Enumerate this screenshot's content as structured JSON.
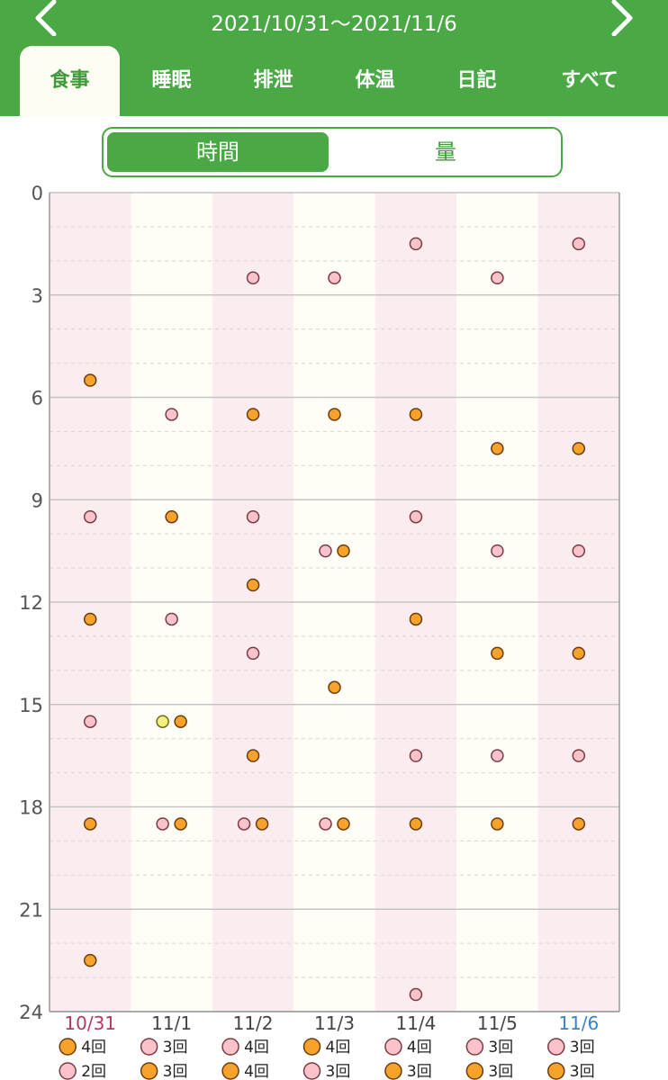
{
  "header": {
    "date_range": "2021/10/31～2021/11/6",
    "tabs": [
      {
        "label": "食事",
        "active": true
      },
      {
        "label": "睡眠",
        "active": false
      },
      {
        "label": "排泄",
        "active": false
      },
      {
        "label": "体温",
        "active": false
      },
      {
        "label": "日記",
        "active": false
      },
      {
        "label": "すべて",
        "active": false
      }
    ]
  },
  "segment": {
    "time_label": "時間",
    "amount_label": "量",
    "selected": "時間"
  },
  "colors": {
    "brand_green": "#4aa845",
    "pink": "#f9c3c9",
    "orange": "#f7a22a",
    "yellow": "#f4ef80"
  },
  "icons": {
    "prev": "chevron-left-icon",
    "next": "chevron-right-icon"
  },
  "chart_data": {
    "type": "scatter",
    "y_ticks": [
      "0",
      "3",
      "6",
      "9",
      "12",
      "15",
      "18",
      "21",
      "24"
    ],
    "ylim": [
      0,
      24
    ],
    "days": [
      {
        "label": "10/31",
        "weekday": "sun"
      },
      {
        "label": "11/1",
        "weekday": "mon"
      },
      {
        "label": "11/2",
        "weekday": "tue"
      },
      {
        "label": "11/3",
        "weekday": "wed"
      },
      {
        "label": "11/4",
        "weekday": "thu"
      },
      {
        "label": "11/5",
        "weekday": "fri"
      },
      {
        "label": "11/6",
        "weekday": "sat"
      }
    ],
    "points": [
      [
        {
          "t": 5.5,
          "c": "orange"
        },
        {
          "t": 9.5,
          "c": "pink"
        },
        {
          "t": 12.5,
          "c": "orange"
        },
        {
          "t": 15.5,
          "c": "pink"
        },
        {
          "t": 18.5,
          "c": "orange"
        },
        {
          "t": 22.5,
          "c": "orange"
        }
      ],
      [
        {
          "t": 6.5,
          "c": "pink"
        },
        {
          "t": 9.5,
          "c": "orange"
        },
        {
          "t": 12.5,
          "c": "pink"
        },
        {
          "t": 15.5,
          "c": "yellow",
          "slot": 0
        },
        {
          "t": 15.5,
          "c": "orange",
          "slot": 1
        },
        {
          "t": 18.5,
          "c": "pink",
          "slot": 0
        },
        {
          "t": 18.5,
          "c": "orange",
          "slot": 1
        }
      ],
      [
        {
          "t": 2.5,
          "c": "pink"
        },
        {
          "t": 6.5,
          "c": "orange"
        },
        {
          "t": 9.5,
          "c": "pink"
        },
        {
          "t": 11.5,
          "c": "orange"
        },
        {
          "t": 13.5,
          "c": "pink"
        },
        {
          "t": 16.5,
          "c": "orange"
        },
        {
          "t": 18.5,
          "c": "pink",
          "slot": 0
        },
        {
          "t": 18.5,
          "c": "orange",
          "slot": 1
        }
      ],
      [
        {
          "t": 2.5,
          "c": "pink"
        },
        {
          "t": 6.5,
          "c": "orange"
        },
        {
          "t": 10.5,
          "c": "pink",
          "slot": 0
        },
        {
          "t": 10.5,
          "c": "orange",
          "slot": 1
        },
        {
          "t": 14.5,
          "c": "orange"
        },
        {
          "t": 18.5,
          "c": "pink",
          "slot": 0
        },
        {
          "t": 18.5,
          "c": "orange",
          "slot": 1
        }
      ],
      [
        {
          "t": 1.5,
          "c": "pink"
        },
        {
          "t": 6.5,
          "c": "orange"
        },
        {
          "t": 9.5,
          "c": "pink"
        },
        {
          "t": 12.5,
          "c": "orange"
        },
        {
          "t": 16.5,
          "c": "pink"
        },
        {
          "t": 18.5,
          "c": "orange"
        },
        {
          "t": 23.5,
          "c": "pink"
        }
      ],
      [
        {
          "t": 2.5,
          "c": "pink"
        },
        {
          "t": 7.5,
          "c": "orange"
        },
        {
          "t": 10.5,
          "c": "pink"
        },
        {
          "t": 13.5,
          "c": "orange"
        },
        {
          "t": 16.5,
          "c": "pink"
        },
        {
          "t": 18.5,
          "c": "orange"
        }
      ],
      [
        {
          "t": 1.5,
          "c": "pink"
        },
        {
          "t": 7.5,
          "c": "orange"
        },
        {
          "t": 10.5,
          "c": "pink"
        },
        {
          "t": 13.5,
          "c": "orange"
        },
        {
          "t": 16.5,
          "c": "pink"
        },
        {
          "t": 18.5,
          "c": "orange"
        }
      ]
    ],
    "counts": [
      [
        {
          "c": "orange",
          "text": "4回"
        },
        {
          "c": "pink",
          "text": "2回"
        }
      ],
      [
        {
          "c": "pink",
          "text": "3回"
        },
        {
          "c": "orange",
          "text": "3回"
        }
      ],
      [
        {
          "c": "pink",
          "text": "4回"
        },
        {
          "c": "orange",
          "text": "4回"
        }
      ],
      [
        {
          "c": "orange",
          "text": "4回"
        },
        {
          "c": "pink",
          "text": "3回"
        }
      ],
      [
        {
          "c": "pink",
          "text": "4回"
        },
        {
          "c": "orange",
          "text": "3回"
        }
      ],
      [
        {
          "c": "pink",
          "text": "3回"
        },
        {
          "c": "orange",
          "text": "3回"
        }
      ],
      [
        {
          "c": "pink",
          "text": "3回"
        },
        {
          "c": "orange",
          "text": "3回"
        }
      ]
    ]
  }
}
